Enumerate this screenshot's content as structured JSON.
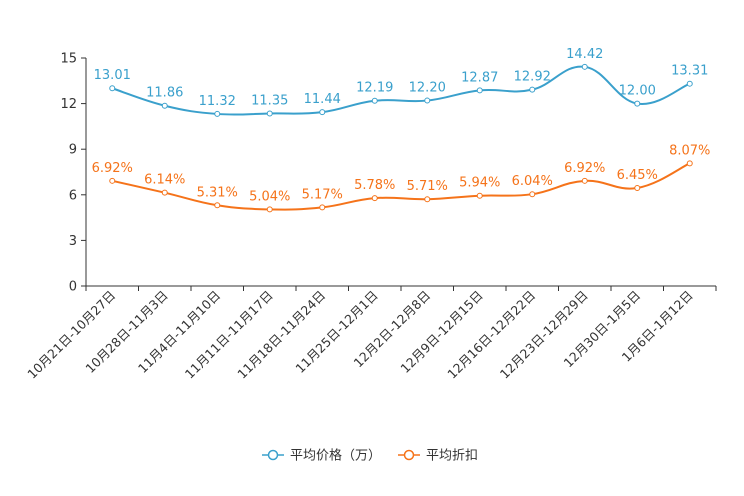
{
  "chart_data": {
    "type": "line",
    "categories": [
      "10月21日-10月27日",
      "10月28日-11月3日",
      "11月4日-11月10日",
      "11月11日-11月17日",
      "11月18日-11月24日",
      "11月25日-12月1日",
      "12月2日-12月8日",
      "12月9日-12月15日",
      "12月16日-12月22日",
      "12月23日-12月29日",
      "12月30日-1月5日",
      "1月6日-1月12日"
    ],
    "yticks": [
      "0",
      "3",
      "6",
      "9",
      "12",
      "15"
    ],
    "ylim": [
      0,
      15
    ],
    "series": [
      {
        "name": "平均价格（万）",
        "color": "#3aa0cc",
        "values": [
          13.01,
          11.86,
          11.32,
          11.35,
          11.44,
          12.19,
          12.2,
          12.87,
          12.92,
          14.42,
          12.0,
          13.31
        ],
        "labels": [
          "13.01",
          "11.86",
          "11.32",
          "11.35",
          "11.44",
          "12.19",
          "12.20",
          "12.87",
          "12.92",
          "14.42",
          "12.00",
          "13.31"
        ]
      },
      {
        "name": "平均折扣",
        "color": "#f5731a",
        "values": [
          6.92,
          6.14,
          5.31,
          5.04,
          5.17,
          5.78,
          5.71,
          5.94,
          6.04,
          6.92,
          6.45,
          8.07
        ],
        "labels": [
          "6.92%",
          "6.14%",
          "5.31%",
          "5.04%",
          "5.17%",
          "5.78%",
          "5.71%",
          "5.94%",
          "6.04%",
          "6.92%",
          "6.45%",
          "8.07%"
        ]
      }
    ],
    "legend_position": "bottom-center"
  }
}
